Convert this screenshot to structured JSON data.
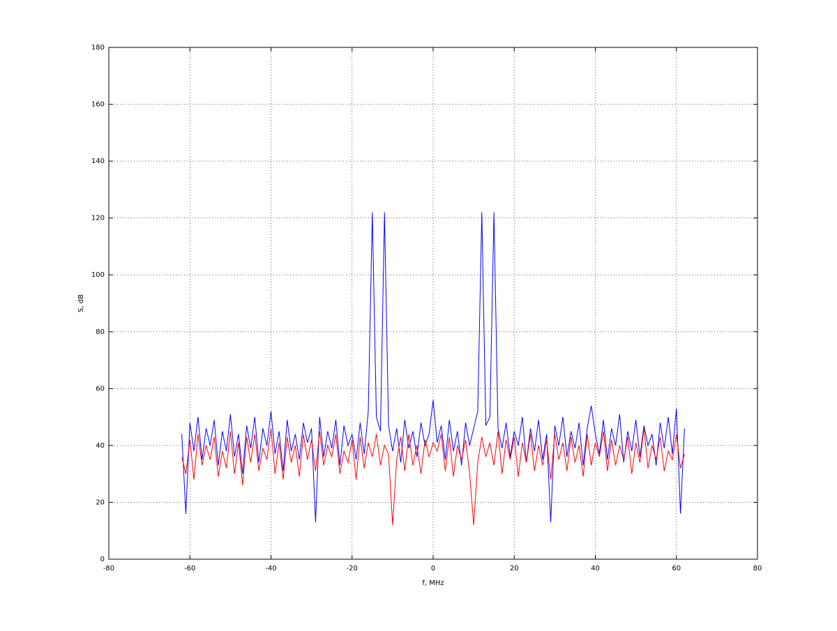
{
  "chart_data": {
    "type": "line",
    "xlabel": "f, MHz",
    "ylabel": "S, dB",
    "xlim": [
      -80,
      80
    ],
    "xticks": [
      -80,
      -60,
      -40,
      -20,
      0,
      20,
      40,
      60,
      80
    ],
    "ylim": [
      0,
      180
    ],
    "yticks": [
      0,
      20,
      40,
      60,
      80,
      100,
      120,
      140,
      160,
      180
    ],
    "grid": true,
    "x": [
      -62,
      -61,
      -60,
      -59,
      -58,
      -57,
      -56,
      -55,
      -54,
      -53,
      -52,
      -51,
      -50,
      -49,
      -48,
      -47,
      -46,
      -45,
      -44,
      -43,
      -42,
      -41,
      -40,
      -39,
      -38,
      -37,
      -36,
      -35,
      -34,
      -33,
      -32,
      -31,
      -30,
      -29,
      -28,
      -27,
      -26,
      -25,
      -24,
      -23,
      -22,
      -21,
      -20,
      -19,
      -18,
      -17,
      -16,
      -15,
      -14,
      -13,
      -12,
      -11,
      -10,
      -9,
      -8,
      -7,
      -6,
      -5,
      -4,
      -3,
      -2,
      -1,
      0,
      1,
      2,
      3,
      4,
      5,
      6,
      7,
      8,
      9,
      10,
      11,
      12,
      13,
      14,
      15,
      16,
      17,
      18,
      19,
      20,
      21,
      22,
      23,
      24,
      25,
      26,
      27,
      28,
      29,
      30,
      31,
      32,
      33,
      34,
      35,
      36,
      37,
      38,
      39,
      40,
      41,
      42,
      43,
      44,
      45,
      46,
      47,
      48,
      49,
      50,
      51,
      52,
      53,
      54,
      55,
      56,
      57,
      58,
      59,
      60,
      61,
      62
    ],
    "series": [
      {
        "color": "#0000ff",
        "values": [
          44,
          16,
          48,
          38,
          50,
          35,
          46,
          40,
          49,
          33,
          45,
          38,
          51,
          36,
          44,
          30,
          47,
          39,
          50,
          34,
          46,
          40,
          52,
          37,
          45,
          31,
          49,
          38,
          44,
          35,
          48,
          41,
          46,
          13,
          50,
          36,
          45,
          39,
          49,
          33,
          47,
          40,
          44,
          35,
          48,
          37,
          52,
          122,
          50,
          45,
          122,
          47,
          38,
          46,
          34,
          49,
          39,
          45,
          36,
          48,
          40,
          44,
          56,
          41,
          47,
          35,
          49,
          38,
          45,
          33,
          48,
          40,
          46,
          52,
          122,
          47,
          50,
          122,
          46,
          39,
          48,
          36,
          45,
          40,
          50,
          34,
          46,
          38,
          49,
          35,
          44,
          13,
          47,
          40,
          50,
          36,
          45,
          39,
          48,
          33,
          46,
          54,
          44,
          37,
          49,
          35,
          46,
          40,
          51,
          34,
          45,
          38,
          49,
          36,
          47,
          40,
          44,
          33,
          48,
          39,
          50,
          37,
          53,
          16,
          46
        ]
      },
      {
        "color": "#ff0000",
        "values": [
          36,
          30,
          42,
          28,
          44,
          33,
          40,
          35,
          43,
          29,
          38,
          32,
          45,
          30,
          41,
          26,
          43,
          34,
          44,
          31,
          39,
          35,
          46,
          30,
          41,
          28,
          43,
          34,
          40,
          29,
          44,
          35,
          42,
          31,
          45,
          33,
          40,
          36,
          44,
          30,
          38,
          34,
          42,
          28,
          43,
          32,
          41,
          36,
          44,
          33,
          40,
          37,
          12,
          35,
          43,
          31,
          44,
          33,
          40,
          30,
          42,
          36,
          41,
          38,
          44,
          31,
          43,
          29,
          40,
          35,
          42,
          30,
          12,
          34,
          43,
          36,
          41,
          33,
          45,
          30,
          42,
          35,
          43,
          29,
          41,
          34,
          44,
          31,
          40,
          33,
          42,
          28,
          44,
          35,
          41,
          31,
          43,
          34,
          40,
          29,
          44,
          33,
          41,
          36,
          45,
          31,
          42,
          33,
          40,
          35,
          43,
          30,
          41,
          34,
          46,
          32,
          40,
          35,
          43,
          31,
          38,
          35,
          44,
          32,
          37
        ]
      }
    ]
  }
}
